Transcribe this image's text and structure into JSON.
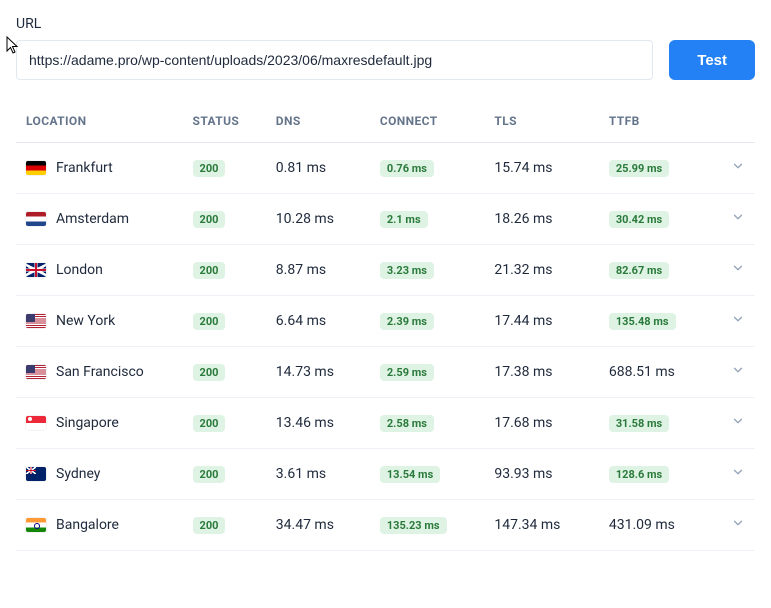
{
  "url": {
    "label": "URL",
    "value": "https://adame.pro/wp-content/uploads/2023/06/maxresdefault.jpg"
  },
  "test_button_label": "Test",
  "columns": {
    "location": "LOCATION",
    "status": "STATUS",
    "dns": "DNS",
    "connect": "CONNECT",
    "tls": "TLS",
    "ttfb": "TTFB"
  },
  "badge_colors": {
    "good_bg": "#dff3e4",
    "good_fg": "#2a7a3b",
    "plain_fg": "#1e293b"
  },
  "rows": [
    {
      "flag": "de",
      "location": "Frankfurt",
      "status": "200",
      "dns": "0.81 ms",
      "connect": "0.76 ms",
      "connect_badge": true,
      "tls": "15.74 ms",
      "ttfb": "25.99 ms",
      "ttfb_badge": true
    },
    {
      "flag": "nl",
      "location": "Amsterdam",
      "status": "200",
      "dns": "10.28 ms",
      "connect": "2.1 ms",
      "connect_badge": true,
      "tls": "18.26 ms",
      "ttfb": "30.42 ms",
      "ttfb_badge": true
    },
    {
      "flag": "gb",
      "location": "London",
      "status": "200",
      "dns": "8.87 ms",
      "connect": "3.23 ms",
      "connect_badge": true,
      "tls": "21.32 ms",
      "ttfb": "82.67 ms",
      "ttfb_badge": true
    },
    {
      "flag": "us",
      "location": "New York",
      "status": "200",
      "dns": "6.64 ms",
      "connect": "2.39 ms",
      "connect_badge": true,
      "tls": "17.44 ms",
      "ttfb": "135.48 ms",
      "ttfb_badge": true
    },
    {
      "flag": "us",
      "location": "San Francisco",
      "status": "200",
      "dns": "14.73 ms",
      "connect": "2.59 ms",
      "connect_badge": true,
      "tls": "17.38 ms",
      "ttfb": "688.51 ms",
      "ttfb_badge": false
    },
    {
      "flag": "sg",
      "location": "Singapore",
      "status": "200",
      "dns": "13.46 ms",
      "connect": "2.58 ms",
      "connect_badge": true,
      "tls": "17.68 ms",
      "ttfb": "31.58 ms",
      "ttfb_badge": true
    },
    {
      "flag": "au",
      "location": "Sydney",
      "status": "200",
      "dns": "3.61 ms",
      "connect": "13.54 ms",
      "connect_badge": true,
      "tls": "93.93 ms",
      "ttfb": "128.6 ms",
      "ttfb_badge": true
    },
    {
      "flag": "in",
      "location": "Bangalore",
      "status": "200",
      "dns": "34.47 ms",
      "connect": "135.23 ms",
      "connect_badge": true,
      "tls": "147.34 ms",
      "ttfb": "431.09 ms",
      "ttfb_badge": false
    }
  ]
}
